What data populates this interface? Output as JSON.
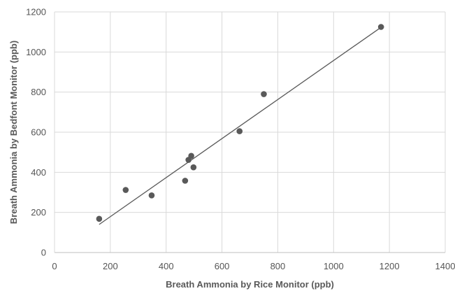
{
  "chart_data": {
    "type": "scatter",
    "title": "",
    "xlabel": "Breath Ammonia by Rice Monitor (ppb)",
    "ylabel": "Breath Ammonia by Bedfont Monitor (ppb)",
    "xlim": [
      0,
      1400
    ],
    "ylim": [
      0,
      1200
    ],
    "xticks": [
      0,
      200,
      400,
      600,
      800,
      1000,
      1200,
      1400
    ],
    "yticks": [
      0,
      200,
      400,
      600,
      800,
      1000,
      1200
    ],
    "grid": true,
    "legend": "none",
    "series": [
      {
        "points": [
          {
            "x": 160,
            "y": 168
          },
          {
            "x": 255,
            "y": 312
          },
          {
            "x": 348,
            "y": 285
          },
          {
            "x": 468,
            "y": 358
          },
          {
            "x": 480,
            "y": 462
          },
          {
            "x": 490,
            "y": 482
          },
          {
            "x": 498,
            "y": 425
          },
          {
            "x": 663,
            "y": 605
          },
          {
            "x": 750,
            "y": 790
          },
          {
            "x": 1170,
            "y": 1125
          }
        ],
        "color": "#595959"
      }
    ],
    "trendline": {
      "type": "linear",
      "from": {
        "x": 160,
        "y": 140
      },
      "to": {
        "x": 1170,
        "y": 1123
      },
      "color": "#595959"
    }
  }
}
